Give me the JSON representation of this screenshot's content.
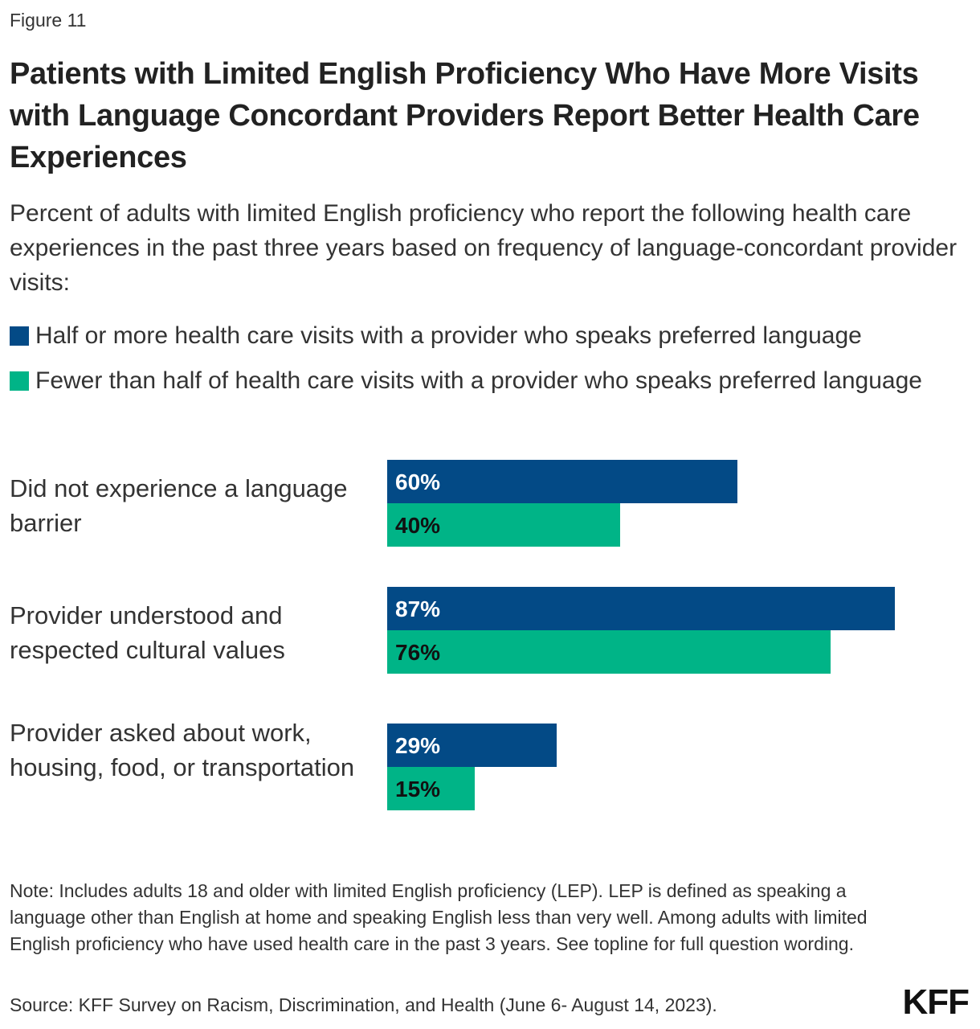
{
  "figure_label": "Figure 11",
  "colors": {
    "series1": "#034a86",
    "series2": "#00b487"
  },
  "chart_data": {
    "type": "bar",
    "orientation": "horizontal",
    "title": "Patients with Limited English Proficiency Who Have More Visits with Language Concordant Providers Report Better Health Care Experiences",
    "subtitle": "Percent of adults with limited English proficiency who report the following health care experiences in the past three years based on frequency of language-concordant provider visits:",
    "categories": [
      "Did not experience a language barrier",
      "Provider understood and respected cultural values",
      "Provider asked about work, housing, food, or transportation"
    ],
    "series": [
      {
        "name": "Half or more health care visits with a provider who speaks preferred language",
        "values": [
          60,
          87,
          29
        ],
        "labels": [
          "60%",
          "87%",
          "29%"
        ]
      },
      {
        "name": "Fewer than half of health care visits with a provider who speaks preferred language",
        "values": [
          40,
          76,
          15
        ],
        "labels": [
          "40%",
          "76%",
          "15%"
        ]
      }
    ],
    "xlim": [
      0,
      100
    ],
    "grid": false,
    "legend_position": "top-left"
  },
  "note": "Note: Includes adults 18 and older with limited English proficiency (LEP). LEP is defined as speaking a language other than English at home and speaking English less than very well. Among adults with limited English proficiency who have used health care in the past 3 years. See topline for full question wording.",
  "source": "Source: KFF Survey on Racism, Discrimination, and Health (June 6- August 14, 2023).",
  "logo": "KFF"
}
